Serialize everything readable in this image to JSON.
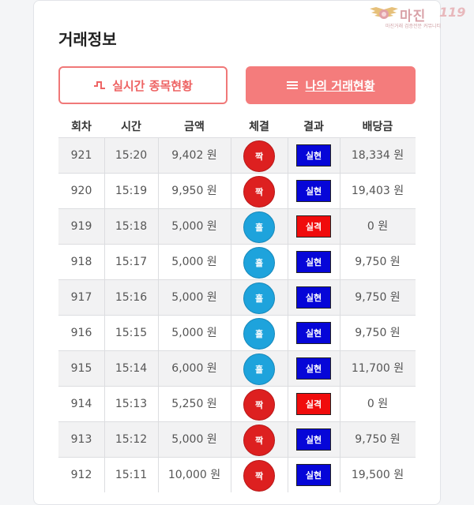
{
  "header": {
    "title": "거래정보"
  },
  "logo": {
    "name": "마진",
    "num": "119",
    "tagline": "마진거래 검증전문 커뮤니티"
  },
  "buttons": {
    "live_label": "실시간 종목현황",
    "mine_label": "나의 거래현황",
    "live_icon": "pulse-icon",
    "mine_icon": "menu-lines-icon"
  },
  "colors": {
    "accent": "#f47c7c",
    "odd": "#dd2020",
    "even": "#1ea3dc",
    "win": "#0606d8",
    "lose": "#f00c0c"
  },
  "table": {
    "columns": [
      "회차",
      "시간",
      "금액",
      "체결",
      "결과",
      "배당금"
    ],
    "rows": [
      {
        "round": "921",
        "time": "15:20",
        "amount": "9,402 원",
        "pick": "짝",
        "result": "실현",
        "payout": "18,334 원"
      },
      {
        "round": "920",
        "time": "15:19",
        "amount": "9,950 원",
        "pick": "짝",
        "result": "실현",
        "payout": "19,403 원"
      },
      {
        "round": "919",
        "time": "15:18",
        "amount": "5,000 원",
        "pick": "홀",
        "result": "실격",
        "payout": "0 원"
      },
      {
        "round": "918",
        "time": "15:17",
        "amount": "5,000 원",
        "pick": "홀",
        "result": "실현",
        "payout": "9,750 원"
      },
      {
        "round": "917",
        "time": "15:16",
        "amount": "5,000 원",
        "pick": "홀",
        "result": "실현",
        "payout": "9,750 원"
      },
      {
        "round": "916",
        "time": "15:15",
        "amount": "5,000 원",
        "pick": "홀",
        "result": "실현",
        "payout": "9,750 원"
      },
      {
        "round": "915",
        "time": "15:14",
        "amount": "6,000 원",
        "pick": "홀",
        "result": "실현",
        "payout": "11,700 원"
      },
      {
        "round": "914",
        "time": "15:13",
        "amount": "5,250 원",
        "pick": "짝",
        "result": "실격",
        "payout": "0 원"
      },
      {
        "round": "913",
        "time": "15:12",
        "amount": "5,000 원",
        "pick": "짝",
        "result": "실현",
        "payout": "9,750 원"
      },
      {
        "round": "912",
        "time": "15:11",
        "amount": "10,000 원",
        "pick": "짝",
        "result": "실현",
        "payout": "19,500 원"
      }
    ]
  }
}
